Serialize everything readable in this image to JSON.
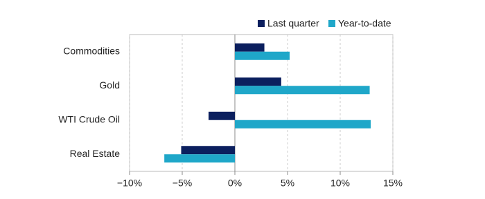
{
  "chart_data": {
    "type": "hbar",
    "categories": [
      "Commodities",
      "Gold",
      "WTI Crude Oil",
      "Real Estate"
    ],
    "series": [
      {
        "name": "Last quarter",
        "color": "#0b1f5e",
        "values": [
          2.8,
          4.4,
          -2.5,
          -5.1
        ]
      },
      {
        "name": "Year-to-date",
        "color": "#1fa7c9",
        "values": [
          5.2,
          12.8,
          12.9,
          -6.7
        ]
      }
    ],
    "xlim": [
      -10,
      15
    ],
    "xticks": [
      {
        "value": -10,
        "label": "−10%"
      },
      {
        "value": -5,
        "label": "−5%"
      },
      {
        "value": 0,
        "label": "0%"
      },
      {
        "value": 5,
        "label": "5%"
      },
      {
        "value": 10,
        "label": "10%"
      },
      {
        "value": 15,
        "label": "15%"
      }
    ],
    "grid": true
  }
}
